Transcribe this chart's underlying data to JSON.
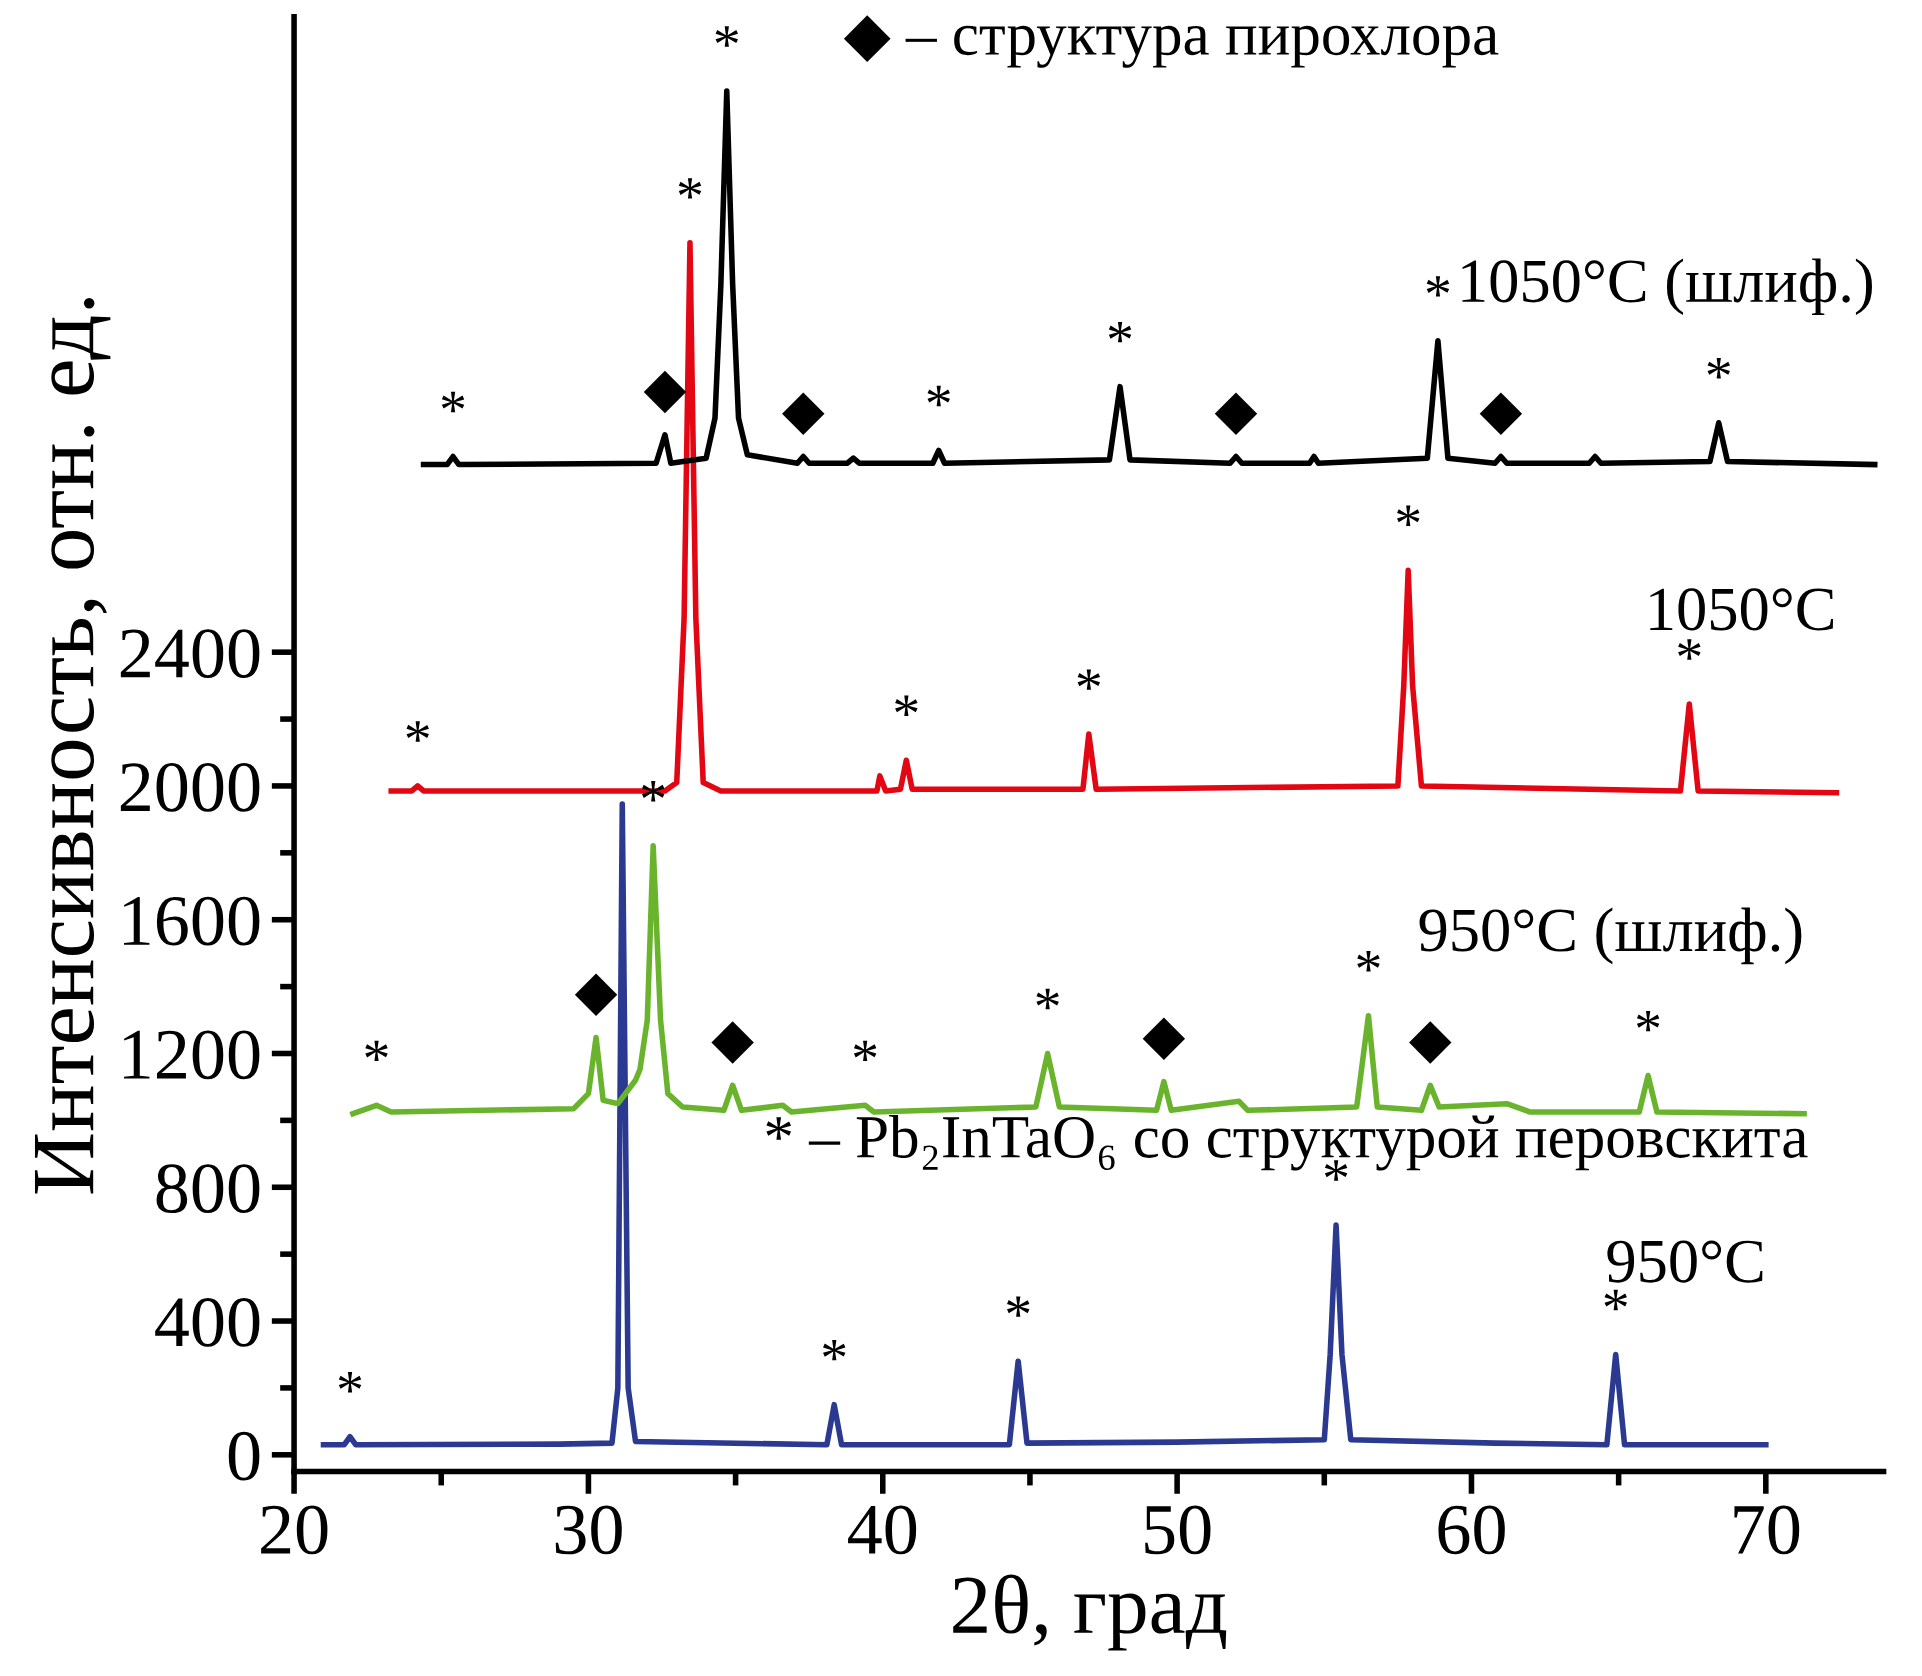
{
  "chart_data": {
    "type": "line",
    "xlabel": "2θ, град",
    "ylabel": "Интенсивность, отн. ед.",
    "xlim": [
      20,
      74
    ],
    "xticks": [
      20,
      30,
      40,
      50,
      60,
      70
    ],
    "ylim": [
      -50,
      4300
    ],
    "yticks": [
      0,
      400,
      800,
      1200,
      1600,
      2000,
      2400
    ],
    "grid": false,
    "legend": false,
    "marker": "none",
    "line_style": "solid",
    "series": [
      {
        "name": "950°C",
        "color": "#2b3990",
        "x": [
          21.0,
          21.7,
          21.9,
          22.1,
          29.0,
          30.8,
          31.0,
          31.15,
          31.35,
          31.6,
          38.1,
          38.35,
          38.6,
          44.3,
          44.6,
          44.9,
          50.0,
          55.0,
          55.2,
          55.4,
          55.6,
          55.9,
          60.8,
          64.6,
          64.9,
          65.2,
          70.0
        ],
        "values": [
          30,
          30,
          54,
          30,
          32,
          35,
          200,
          1946,
          200,
          40,
          30,
          150,
          30,
          30,
          280,
          35,
          38,
          45,
          300,
          687,
          300,
          45,
          35,
          30,
          300,
          30,
          30
        ]
      },
      {
        "name": "950°C (шлиф.)",
        "color": "#6ab42d",
        "x": [
          22.0,
          22.8,
          23.3,
          29.5,
          30.0,
          30.26,
          30.5,
          31.0,
          31.6,
          31.75,
          32.0,
          32.2,
          32.45,
          32.7,
          33.2,
          34.6,
          34.9,
          35.2,
          36.6,
          36.9,
          39.4,
          39.7,
          45.2,
          45.6,
          46.0,
          49.3,
          49.55,
          49.8,
          52.1,
          52.4,
          56.1,
          56.5,
          56.8,
          58.3,
          58.6,
          58.9,
          61.2,
          62.0,
          65.7,
          66.0,
          66.3,
          71.3
        ],
        "values": [
          1020,
          1045,
          1025,
          1035,
          1080,
          1248,
          1060,
          1050,
          1120,
          1152,
          1300,
          1821,
          1300,
          1080,
          1040,
          1030,
          1105,
          1030,
          1045,
          1025,
          1045,
          1025,
          1040,
          1200,
          1040,
          1030,
          1116,
          1030,
          1057,
          1030,
          1040,
          1313,
          1040,
          1030,
          1105,
          1040,
          1050,
          1025,
          1025,
          1134,
          1025,
          1020
        ]
      },
      {
        "name": "1050°C",
        "color": "#e30613",
        "x": [
          23.3,
          24.0,
          24.2,
          24.4,
          32.6,
          33.0,
          33.25,
          33.45,
          33.65,
          33.9,
          34.5,
          39.8,
          39.9,
          40.1,
          40.6,
          40.8,
          41.0,
          46.8,
          47.0,
          47.25,
          57.5,
          57.7,
          57.85,
          58.0,
          58.3,
          67.1,
          67.4,
          67.7,
          72.4
        ],
        "values": [
          1985,
          1985,
          2000,
          1985,
          1985,
          2010,
          2500,
          3624,
          2500,
          2010,
          1985,
          1985,
          2030,
          1985,
          1990,
          2077,
          1990,
          1990,
          2155,
          1990,
          2000,
          2300,
          2645,
          2300,
          2000,
          1985,
          2245,
          1985,
          1980
        ]
      },
      {
        "name": "1050°C (шлиф.)",
        "color": "#000000",
        "x": [
          24.4,
          25.2,
          25.4,
          25.6,
          32.3,
          32.6,
          32.8,
          34.0,
          34.3,
          34.5,
          34.7,
          34.9,
          35.1,
          35.4,
          37.1,
          37.3,
          37.5,
          38.8,
          39.0,
          39.2,
          41.7,
          41.9,
          42.1,
          47.7,
          48.06,
          48.4,
          51.8,
          52.0,
          52.2,
          54.5,
          54.65,
          54.8,
          58.5,
          58.86,
          59.2,
          60.8,
          61.0,
          61.2,
          64.0,
          64.2,
          64.4,
          68.1,
          68.4,
          68.7,
          73.7
        ],
        "values": [
          2961,
          2961,
          2985,
          2961,
          2965,
          3050,
          2965,
          2980,
          3100,
          3500,
          4078,
          3500,
          3100,
          2990,
          2965,
          2985,
          2965,
          2965,
          2980,
          2965,
          2965,
          3003,
          2965,
          2975,
          3194,
          2975,
          2965,
          2985,
          2965,
          2965,
          2985,
          2965,
          2980,
          3331,
          2980,
          2965,
          2985,
          2965,
          2965,
          2985,
          2965,
          2970,
          3086,
          2970,
          2961
        ]
      }
    ],
    "annotations": [
      "◆ – структура пирохлора",
      "* – Pb₂InTaO₆ со структурой перовскита",
      {
        "text": "*",
        "x": 21.9,
        "y": 54
      },
      {
        "text": "*",
        "x": 38.35,
        "y": 150
      },
      {
        "text": "*",
        "x": 44.6,
        "y": 280
      },
      {
        "text": "*",
        "x": 55.4,
        "y": 687
      },
      {
        "text": "*",
        "x": 64.9,
        "y": 300
      },
      {
        "text": "*",
        "x": 22.8,
        "y": 1045
      },
      {
        "text": "*",
        "x": 32.2,
        "y": 1821
      },
      {
        "text": "*",
        "x": 39.4,
        "y": 1045
      },
      {
        "text": "*",
        "x": 45.6,
        "y": 1200
      },
      {
        "text": "*",
        "x": 56.5,
        "y": 1313
      },
      {
        "text": "*",
        "x": 66.0,
        "y": 1134
      },
      {
        "text": "◆",
        "x": 30.26,
        "y": 1248
      },
      {
        "text": "◆",
        "x": 34.9,
        "y": 1105
      },
      {
        "text": "◆",
        "x": 49.55,
        "y": 1116
      },
      {
        "text": "◆",
        "x": 58.6,
        "y": 1105
      },
      {
        "text": "*",
        "x": 24.2,
        "y": 2000
      },
      {
        "text": "*",
        "x": 33.45,
        "y": 3624
      },
      {
        "text": "*",
        "x": 40.8,
        "y": 2077
      },
      {
        "text": "*",
        "x": 47.0,
        "y": 2155
      },
      {
        "text": "*",
        "x": 57.85,
        "y": 2645
      },
      {
        "text": "*",
        "x": 67.4,
        "y": 2245
      },
      {
        "text": "*",
        "x": 25.4,
        "y": 2985
      },
      {
        "text": "*",
        "x": 34.7,
        "y": 4078
      },
      {
        "text": "*",
        "x": 41.9,
        "y": 3003
      },
      {
        "text": "*",
        "x": 48.06,
        "y": 3194
      },
      {
        "text": "*",
        "x": 58.86,
        "y": 3331
      },
      {
        "text": "*",
        "x": 68.4,
        "y": 3086
      },
      {
        "text": "◆",
        "x": 32.6,
        "y": 3050
      },
      {
        "text": "◆",
        "x": 37.3,
        "y": 2985
      },
      {
        "text": "◆",
        "x": 52.0,
        "y": 2985
      },
      {
        "text": "◆",
        "x": 61.0,
        "y": 2985
      }
    ]
  }
}
